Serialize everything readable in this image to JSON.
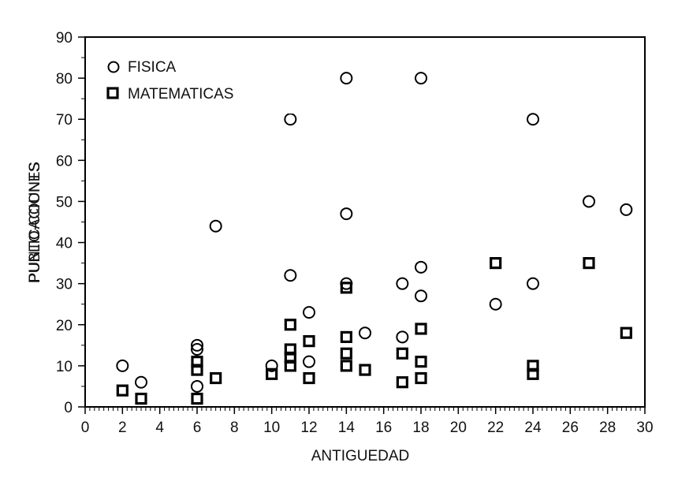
{
  "chart_data": {
    "type": "scatter",
    "xlabel": "ANTIGUEDAD",
    "ylabel": "PUBLICACIONES",
    "ylabel_overlap": "PUNTO-COUNTS",
    "xlim": [
      0,
      30
    ],
    "ylim": [
      0,
      90
    ],
    "xticks": [
      0,
      2,
      4,
      6,
      8,
      10,
      12,
      14,
      16,
      18,
      20,
      22,
      24,
      26,
      28,
      30
    ],
    "yticks": [
      0,
      10,
      20,
      30,
      40,
      50,
      60,
      70,
      80,
      90
    ],
    "grid": false,
    "legend_position": "top-left",
    "series": [
      {
        "name": "FISICA",
        "marker": "circle",
        "color": "#000000",
        "points": [
          [
            2,
            10
          ],
          [
            3,
            6
          ],
          [
            6,
            5
          ],
          [
            6,
            14
          ],
          [
            6,
            15
          ],
          [
            7,
            44
          ],
          [
            10,
            10
          ],
          [
            11,
            70
          ],
          [
            11,
            32
          ],
          [
            12,
            23
          ],
          [
            12,
            11
          ],
          [
            14,
            80
          ],
          [
            14,
            47
          ],
          [
            14,
            30
          ],
          [
            15,
            18
          ],
          [
            17,
            30
          ],
          [
            17,
            17
          ],
          [
            18,
            80
          ],
          [
            18,
            34
          ],
          [
            18,
            27
          ],
          [
            22,
            25
          ],
          [
            24,
            70
          ],
          [
            24,
            30
          ],
          [
            27,
            50
          ],
          [
            29,
            48
          ]
        ]
      },
      {
        "name": "MATEMATICAS",
        "marker": "square",
        "color": "#000000",
        "points": [
          [
            2,
            4
          ],
          [
            3,
            2
          ],
          [
            6,
            2
          ],
          [
            6,
            9
          ],
          [
            6,
            11
          ],
          [
            7,
            7
          ],
          [
            10,
            8
          ],
          [
            11,
            20
          ],
          [
            11,
            14
          ],
          [
            11,
            12
          ],
          [
            11,
            10
          ],
          [
            12,
            16
          ],
          [
            12,
            7
          ],
          [
            14,
            29
          ],
          [
            14,
            17
          ],
          [
            14,
            13
          ],
          [
            14,
            10
          ],
          [
            15,
            9
          ],
          [
            17,
            13
          ],
          [
            17,
            6
          ],
          [
            18,
            19
          ],
          [
            18,
            11
          ],
          [
            18,
            7
          ],
          [
            22,
            35
          ],
          [
            24,
            10
          ],
          [
            24,
            8
          ],
          [
            27,
            35
          ],
          [
            29,
            18
          ]
        ]
      }
    ]
  }
}
